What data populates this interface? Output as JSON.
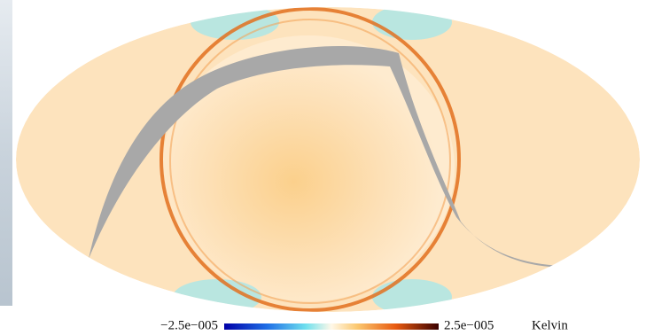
{
  "colorbar": {
    "min": {
      "value": -2.5e-05,
      "label": "−2.5e−005"
    },
    "max": {
      "value": 2.5e-05,
      "label": "2.5e−005"
    },
    "unit": "Kelvin"
  }
}
